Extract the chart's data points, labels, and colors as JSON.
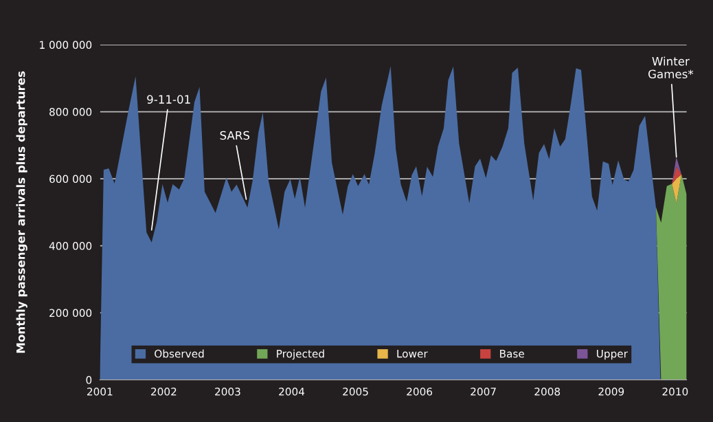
{
  "chart_data": {
    "type": "area",
    "ylabel": "Monthly passenger arrivals plus departures",
    "xlim": [
      2001,
      2010.18
    ],
    "xticks": [
      2001,
      2002,
      2003,
      2004,
      2005,
      2006,
      2007,
      2008,
      2009,
      2010
    ],
    "ylim": [
      0,
      1000000
    ],
    "yticks": [
      {
        "value": 0,
        "label": "0"
      },
      {
        "value": 200000,
        "label": "200 000"
      },
      {
        "value": 400000,
        "label": "400 000"
      },
      {
        "value": 600000,
        "label": "600 000"
      },
      {
        "value": 800000,
        "label": "800 000"
      },
      {
        "value": 1000000,
        "label": "1 000 000"
      }
    ],
    "grid": "y",
    "legend": "bottom",
    "annotations": [
      {
        "text": "9-11-01",
        "x": 2001.81,
        "y": 447000
      },
      {
        "text": "SARS",
        "x": 2003.29,
        "y": 539000
      },
      {
        "text": "Winter\nGames*",
        "x": 2010.02,
        "y": 665000
      }
    ],
    "series": [
      {
        "name": "Observed",
        "color": "#4a6ca3",
        "x": [
          2001.0,
          2001.06,
          2001.14,
          2001.23,
          2001.45,
          2001.56,
          2001.73,
          2001.81,
          2001.89,
          2001.98,
          2002.06,
          2002.14,
          2002.24,
          2002.32,
          2002.48,
          2002.56,
          2002.64,
          2002.81,
          2002.98,
          2003.06,
          2003.14,
          2003.31,
          2003.39,
          2003.48,
          2003.55,
          2003.64,
          2003.8,
          2003.89,
          2003.98,
          2004.05,
          2004.13,
          2004.21,
          2004.46,
          2004.54,
          2004.63,
          2004.8,
          2004.88,
          2004.96,
          2005.04,
          2005.14,
          2005.21,
          2005.3,
          2005.41,
          2005.55,
          2005.63,
          2005.71,
          2005.8,
          2005.88,
          2005.95,
          2006.04,
          2006.12,
          2006.21,
          2006.29,
          2006.38,
          2006.45,
          2006.53,
          2006.62,
          2006.78,
          2006.87,
          2006.95,
          2007.04,
          2007.12,
          2007.2,
          2007.3,
          2007.39,
          2007.45,
          2007.54,
          2007.64,
          2007.78,
          2007.87,
          2007.95,
          2008.03,
          2008.11,
          2008.2,
          2008.28,
          2008.37,
          2008.45,
          2008.53,
          2008.7,
          2008.78,
          2008.87,
          2008.96,
          2009.02,
          2009.11,
          2009.2,
          2009.27,
          2009.35,
          2009.44,
          2009.53,
          2009.7,
          2009.77
        ],
        "values": [
          0,
          627000,
          631000,
          586000,
          805000,
          906000,
          440000,
          410000,
          471000,
          584000,
          529000,
          584000,
          568000,
          600000,
          829000,
          874000,
          561000,
          498000,
          604000,
          561000,
          583000,
          514000,
          594000,
          737000,
          798000,
          594000,
          449000,
          561000,
          599000,
          540000,
          606000,
          514000,
          860000,
          902000,
          648000,
          493000,
          578000,
          614000,
          578000,
          614000,
          583000,
          675000,
          819000,
          936000,
          689000,
          583000,
          531000,
          611000,
          637000,
          548000,
          636000,
          606000,
          696000,
          751000,
          894000,
          935000,
          706000,
          527000,
          637000,
          660000,
          602000,
          670000,
          653000,
          696000,
          751000,
          916000,
          932000,
          706000,
          535000,
          677000,
          704000,
          658000,
          751000,
          696000,
          718000,
          826000,
          930000,
          925000,
          547000,
          505000,
          652000,
          645000,
          581000,
          655000,
          598000,
          592000,
          626000,
          758000,
          788000,
          515000,
          0
        ]
      },
      {
        "name": "Projected",
        "color": "#72a757",
        "x": [
          2009.7,
          2009.78,
          2009.87,
          2009.95,
          2010.02,
          2010.1,
          2010.18
        ],
        "values": [
          515000,
          469000,
          578000,
          585000,
          527000,
          613000,
          553000
        ]
      },
      {
        "name": "Lower",
        "color": "#e8b54a",
        "x": [
          2009.95,
          2010.02,
          2010.1
        ],
        "values": [
          585000,
          600000,
          613000
        ]
      },
      {
        "name": "Base",
        "color": "#c8433f",
        "x": [
          2009.95,
          2010.02,
          2010.1
        ],
        "values": [
          585000,
          636000,
          613000
        ]
      },
      {
        "name": "Upper",
        "color": "#7c5597",
        "x": [
          2009.95,
          2010.02,
          2010.1
        ],
        "values": [
          585000,
          665000,
          613000
        ]
      }
    ]
  }
}
